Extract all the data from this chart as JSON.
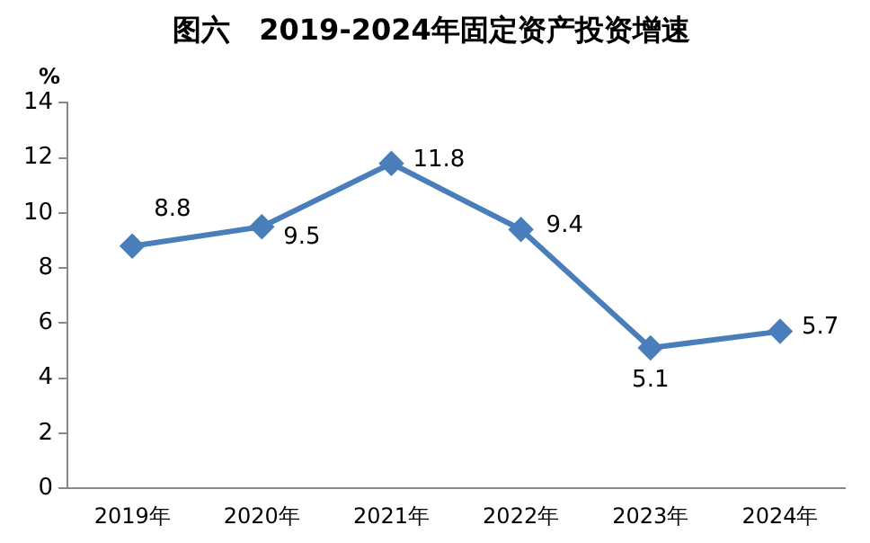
{
  "chart_data": {
    "type": "line",
    "title": "图六　2019-2024年固定资产投资增速",
    "ylabel": "%",
    "categories": [
      "2019年",
      "2020年",
      "2021年",
      "2022年",
      "2023年",
      "2024年"
    ],
    "series": [
      {
        "color": "#4a7ebb",
        "values": [
          8.8,
          9.5,
          11.8,
          9.4,
          5.1,
          5.7
        ]
      }
    ],
    "ylim": [
      0,
      14
    ],
    "yticks": [
      0,
      2,
      4,
      6,
      8,
      10,
      12,
      14
    ],
    "grid": false,
    "legend": false,
    "marker": "diamond",
    "line_style": "solid",
    "data_labels": true
  }
}
